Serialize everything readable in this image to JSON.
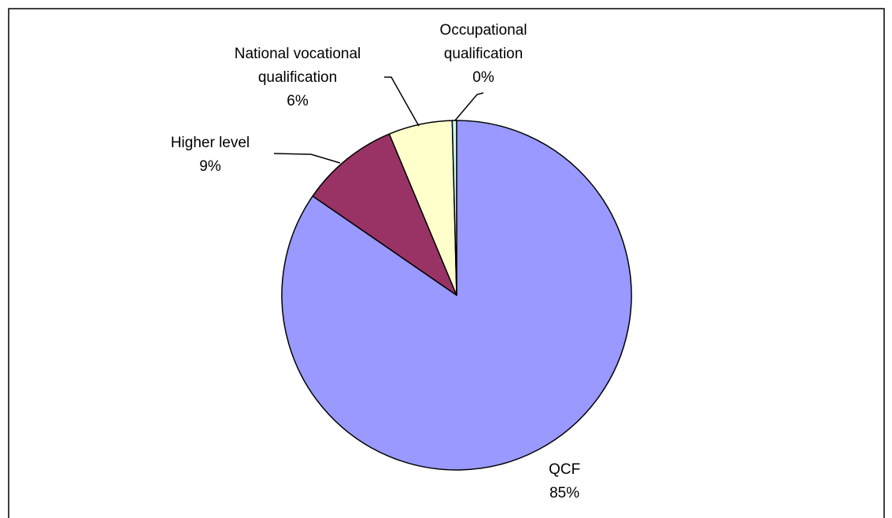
{
  "chart_data": {
    "type": "pie",
    "categories": [
      "QCF",
      "Higher level",
      "National vocational qualification",
      "Occupational qualification"
    ],
    "values": [
      84.6,
      9.1,
      5.9,
      0.4
    ],
    "value_labels": [
      "85%",
      "9%",
      "6%",
      "0%"
    ],
    "colors": [
      "#9999ff",
      "#993366",
      "#ffffcc",
      "#ccffff"
    ]
  }
}
